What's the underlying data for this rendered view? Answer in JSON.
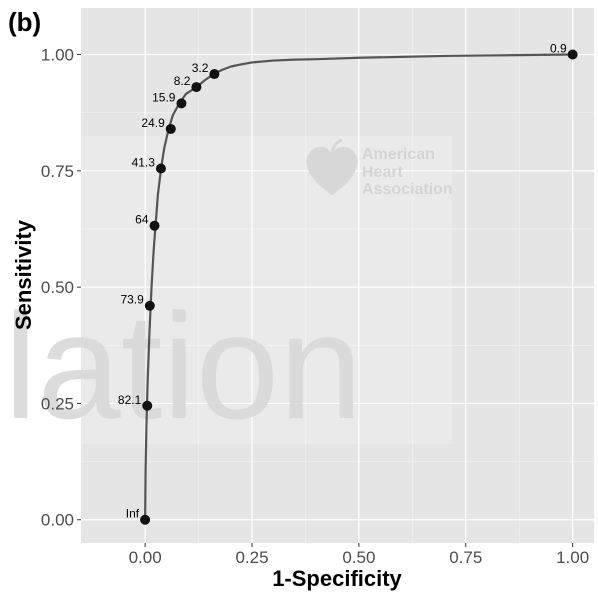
{
  "chart_data": {
    "type": "line",
    "panel_tag": "(b)",
    "xlabel": "1-Specificity",
    "ylabel": "Sensitivity",
    "xlim": [
      -0.15,
      1.05
    ],
    "ylim": [
      -0.05,
      1.1
    ],
    "x_ticks": [
      0.0,
      0.25,
      0.5,
      0.75,
      1.0
    ],
    "x_tick_labels": [
      "0.00",
      "0.25",
      "0.50",
      "0.75",
      "1.00"
    ],
    "y_ticks": [
      0.0,
      0.25,
      0.5,
      0.75,
      1.0
    ],
    "y_tick_labels": [
      "0.00",
      "0.25",
      "0.50",
      "0.75",
      "1.00"
    ],
    "grid": true,
    "curve": {
      "x": [
        0.0,
        0.001,
        0.003,
        0.006,
        0.01,
        0.015,
        0.02,
        0.025,
        0.03,
        0.038,
        0.045,
        0.055,
        0.065,
        0.08,
        0.095,
        0.12,
        0.14,
        0.16,
        0.18,
        0.2,
        0.22,
        0.25,
        0.3,
        0.35,
        0.4,
        0.5,
        0.6,
        0.7,
        0.8,
        0.9,
        1.0
      ],
      "y": [
        0.0,
        0.1,
        0.2,
        0.3,
        0.4,
        0.5,
        0.58,
        0.64,
        0.7,
        0.76,
        0.8,
        0.84,
        0.87,
        0.895,
        0.915,
        0.93,
        0.945,
        0.958,
        0.967,
        0.974,
        0.978,
        0.983,
        0.987,
        0.989,
        0.99,
        0.993,
        0.995,
        0.997,
        0.998,
        0.999,
        1.0
      ]
    },
    "points": [
      {
        "label": "Inf",
        "x": 0.0,
        "y": 0.0
      },
      {
        "label": "82.1",
        "x": 0.005,
        "y": 0.245
      },
      {
        "label": "73.9",
        "x": 0.011,
        "y": 0.46
      },
      {
        "label": "64",
        "x": 0.022,
        "y": 0.632
      },
      {
        "label": "41.3",
        "x": 0.037,
        "y": 0.755
      },
      {
        "label": "24.9",
        "x": 0.06,
        "y": 0.84
      },
      {
        "label": "15.9",
        "x": 0.085,
        "y": 0.895
      },
      {
        "label": "8.2",
        "x": 0.12,
        "y": 0.93
      },
      {
        "label": "3.2",
        "x": 0.162,
        "y": 0.958
      },
      {
        "label": "0.9",
        "x": 1.0,
        "y": 1.0
      }
    ]
  },
  "watermark": {
    "brand_line1": "American",
    "brand_line2": "Heart",
    "brand_line3": "Association",
    "large_text": "lation"
  },
  "colors": {
    "panel_bg": "#e5e5e5",
    "grid": "#ffffff",
    "curve": "#555555",
    "point": "#111111",
    "watermark": "#dcdcdc"
  }
}
